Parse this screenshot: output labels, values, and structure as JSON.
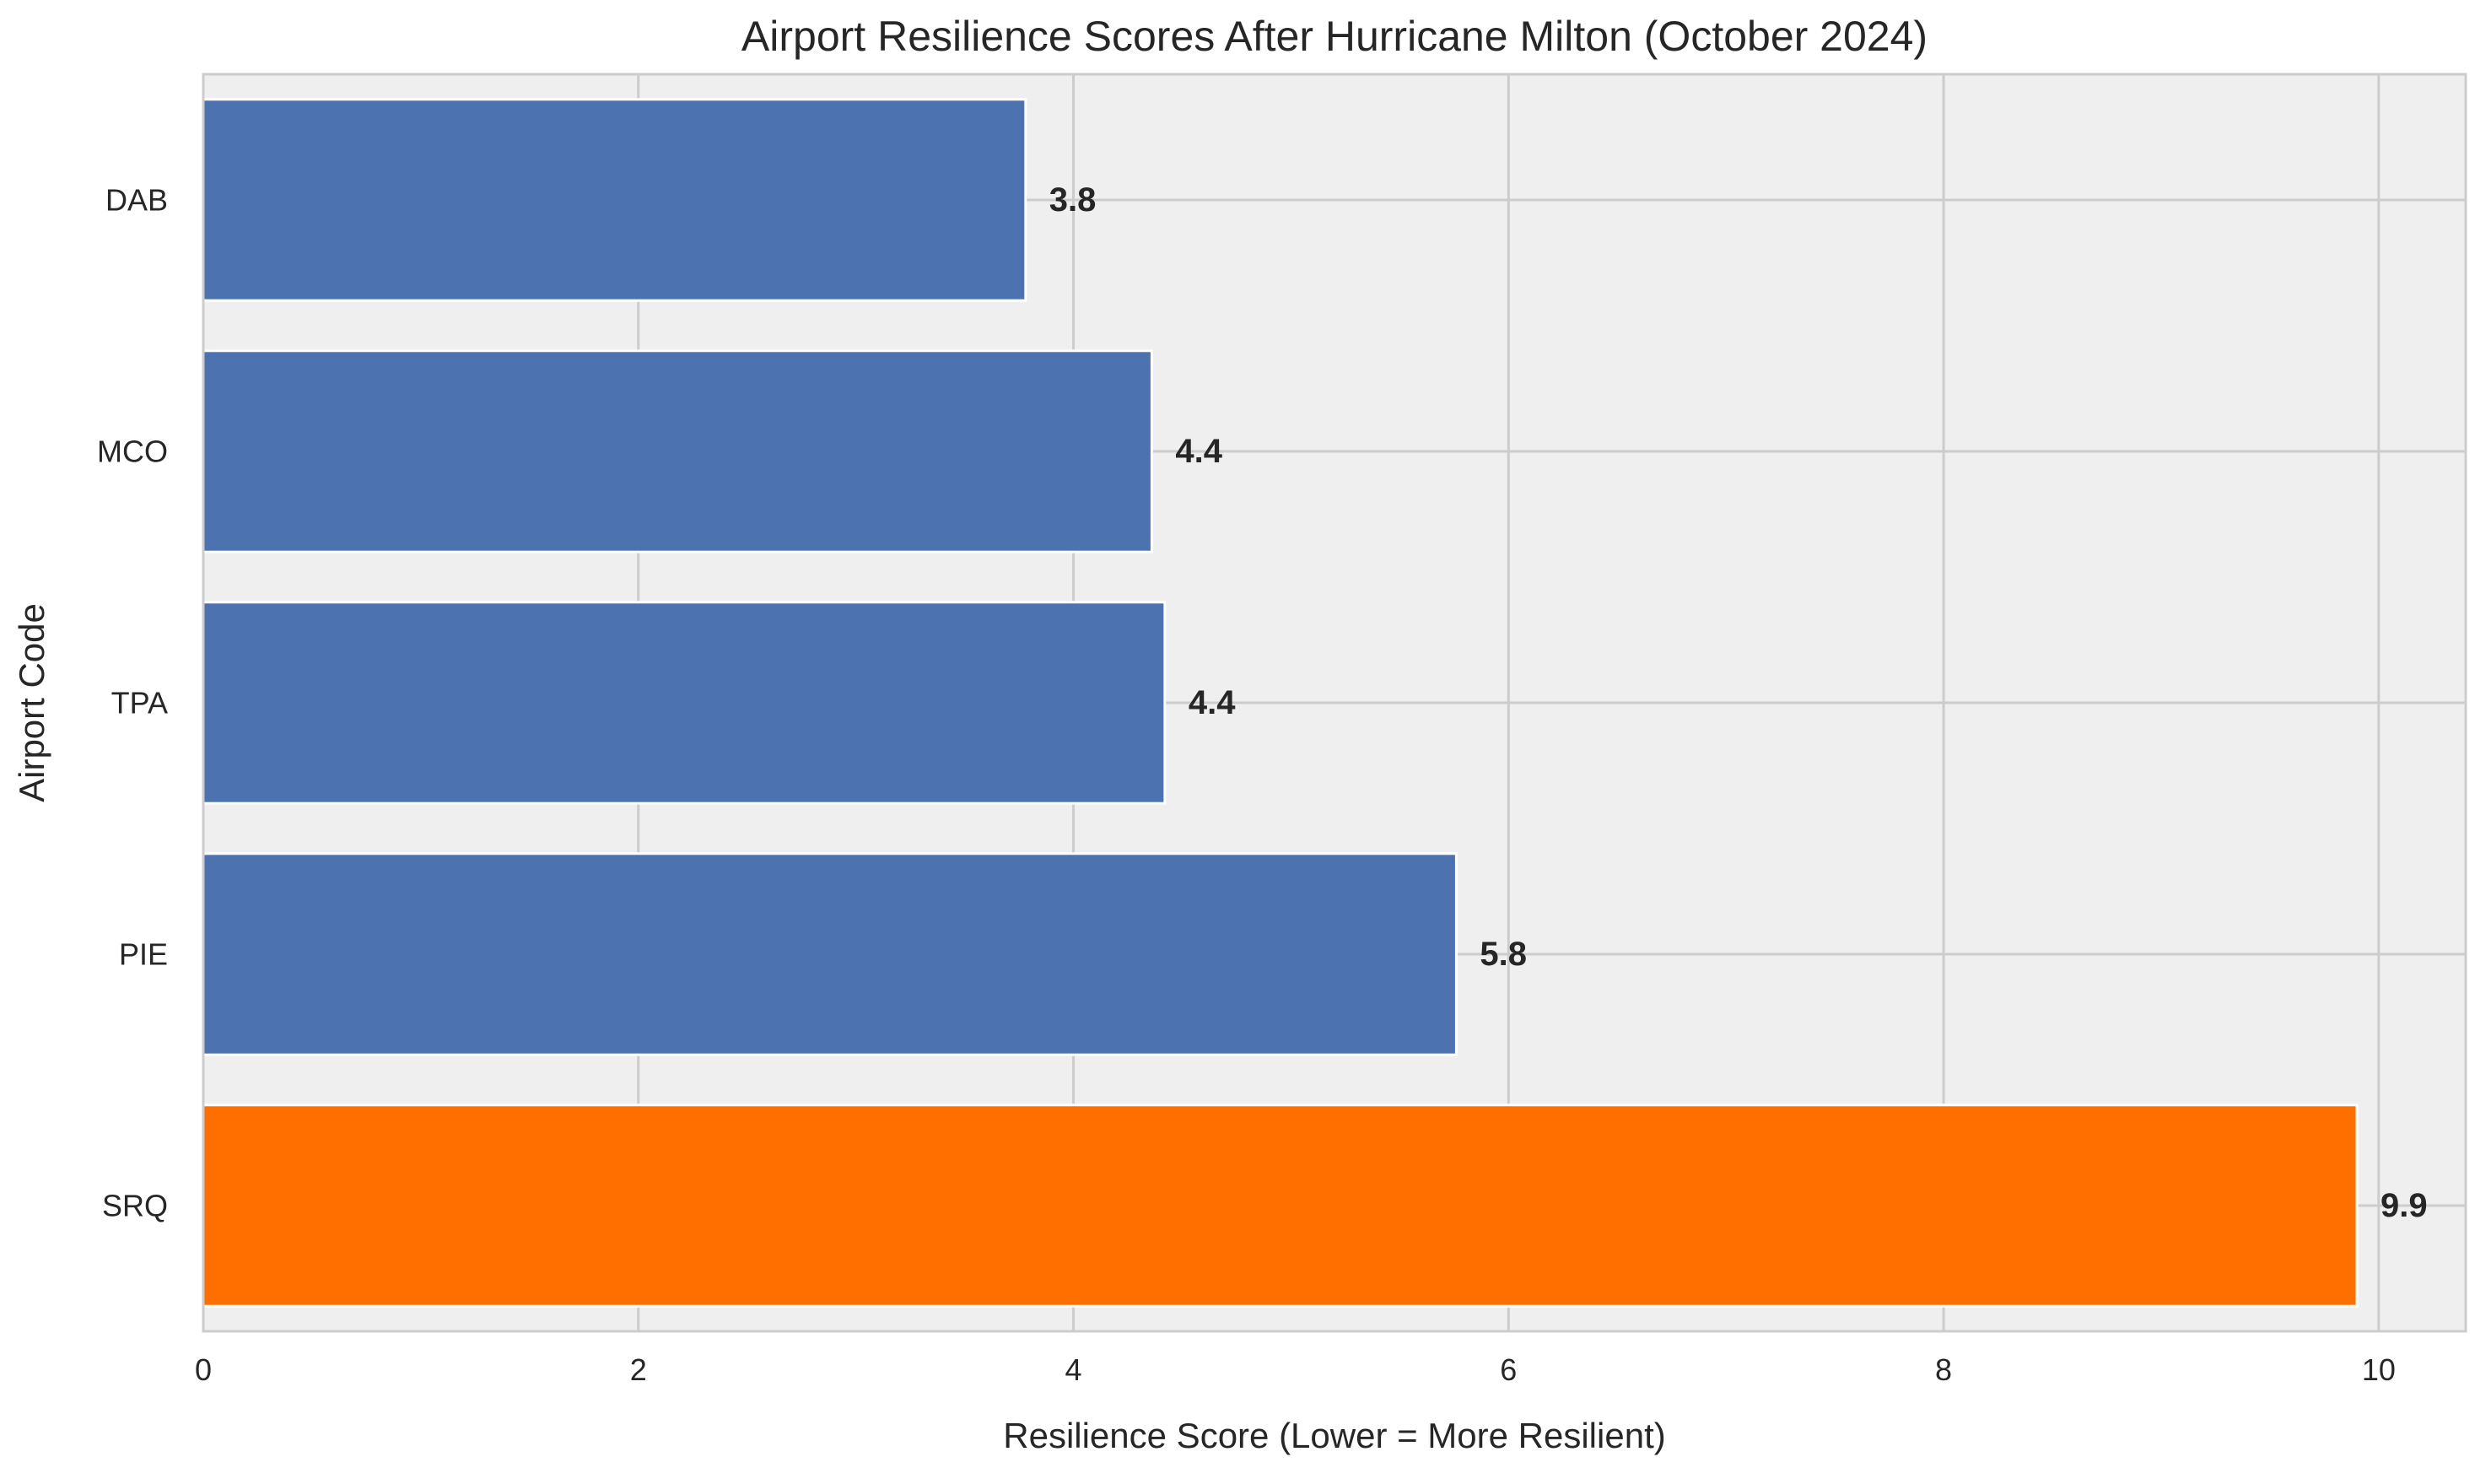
{
  "chart_data": {
    "type": "bar",
    "orientation": "horizontal",
    "title": "Airport Resilience Scores After Hurricane Milton (October 2024)",
    "xlabel": "Resilience Score (Lower = More Resilient)",
    "ylabel": "Airport Code",
    "xlim": [
      0,
      10.4
    ],
    "xticks": [
      0,
      2,
      4,
      6,
      8,
      10
    ],
    "grid": true,
    "categories": [
      "DAB",
      "MCO",
      "TPA",
      "PIE",
      "SRQ"
    ],
    "values": [
      3.78,
      4.36,
      4.42,
      5.76,
      9.9
    ],
    "value_labels": [
      "3.8",
      "4.4",
      "4.4",
      "5.8",
      "9.9"
    ],
    "bar_colors": [
      "#4c72b0",
      "#4c72b0",
      "#4c72b0",
      "#4c72b0",
      "#ff6f00"
    ]
  },
  "colors": {
    "plot_background": "#efefef",
    "grid": "#cccccc",
    "default_bar": "#4c72b0",
    "highlight_bar": "#ff6f00"
  }
}
